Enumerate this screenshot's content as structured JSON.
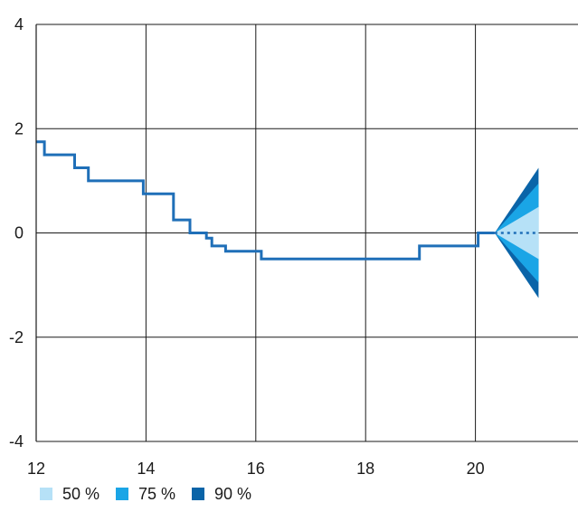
{
  "chart_data": {
    "type": "line",
    "title": "",
    "xlabel": "",
    "ylabel": "",
    "xlim": [
      12,
      22
    ],
    "ylim": [
      -4,
      4
    ],
    "x_ticks": [
      12,
      14,
      16,
      18,
      20
    ],
    "y_ticks": [
      -4,
      -2,
      0,
      2,
      4
    ],
    "x_tick_labels": [
      "12",
      "14",
      "16",
      "18",
      "20"
    ],
    "y_tick_labels": [
      "-4",
      "-2",
      "0",
      "2",
      "4"
    ],
    "grid": true,
    "legend_position": "bottom-left",
    "series": [
      {
        "kind": "step",
        "color": "#1f6fb8",
        "x": [
          12.0,
          12.15,
          12.15,
          12.7,
          12.7,
          12.95,
          12.95,
          13.95,
          13.95,
          14.5,
          14.5,
          14.8,
          14.8,
          15.1,
          15.1,
          15.2,
          15.2,
          15.45,
          15.45,
          16.1,
          16.1,
          18.98,
          18.98,
          20.05,
          20.05,
          20.35
        ],
        "y": [
          1.75,
          1.75,
          1.5,
          1.5,
          1.25,
          1.25,
          1.0,
          1.0,
          0.75,
          0.75,
          0.25,
          0.25,
          0.0,
          0.0,
          -0.1,
          -0.1,
          -0.25,
          -0.25,
          -0.35,
          -0.35,
          -0.5,
          -0.5,
          -0.25,
          -0.25,
          0.0,
          0.0
        ]
      },
      {
        "kind": "projection",
        "color": "#1f6fb8",
        "style": "dotted",
        "x": [
          20.35,
          21.15
        ],
        "y": [
          0.0,
          0.0
        ]
      }
    ],
    "fan": {
      "x_start": 20.35,
      "x_end": 21.15,
      "center": 0.0,
      "bands": [
        {
          "name": "90 %",
          "color": "#0a64a8",
          "lower": -1.25,
          "upper": 1.25
        },
        {
          "name": "75 %",
          "color": "#1aa5e6",
          "lower": -0.95,
          "upper": 0.95
        },
        {
          "name": "50 %",
          "color": "#b6e1f7",
          "lower": -0.5,
          "upper": 0.5
        }
      ]
    },
    "legend": [
      {
        "label": "50 %",
        "color": "#b6e1f7"
      },
      {
        "label": "75 %",
        "color": "#1aa5e6"
      },
      {
        "label": "90 %",
        "color": "#0a64a8"
      }
    ]
  }
}
